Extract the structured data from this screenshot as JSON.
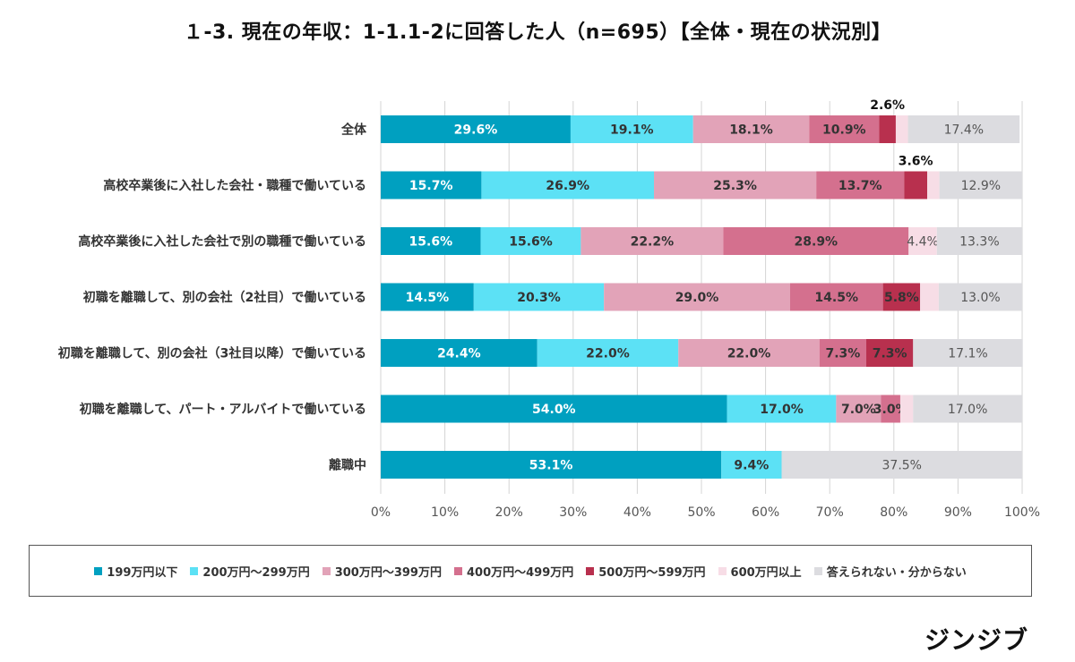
{
  "title": "１-3.  現在の年収：1-1.1-2に回答した人（n=695）【全体・現在の状況別】",
  "brand": "ジンジブ",
  "colors": {
    "s1": "#00a0c0",
    "s2": "#5ce1f5",
    "s3": "#e2a3b8",
    "s4": "#d4708e",
    "s5": "#b8304e",
    "s6": "#f7dde6",
    "s7": "#dcdce0",
    "grid": "#d4d4d4"
  },
  "chart_data": {
    "type": "bar",
    "orientation": "horizontal",
    "stacked": true,
    "categories": [
      "全体",
      "高校卒業後に入社した会社・職種で働いている",
      "高校卒業後に入社した会社で別の職種で働いている",
      "初職を離職して、別の会社（2社目）で働いている",
      "初職を離職して、別の会社（3社目以降）で働いている",
      "初職を離職して、パート・アルバイトで働いている",
      "離職中"
    ],
    "series": [
      {
        "name": "199万円以下",
        "color_key": "s1",
        "values": [
          29.6,
          15.7,
          15.6,
          14.5,
          24.4,
          54.0,
          53.1
        ]
      },
      {
        "name": "200万円～299万円",
        "color_key": "s2",
        "values": [
          19.1,
          26.9,
          15.6,
          20.3,
          22.0,
          17.0,
          9.4
        ]
      },
      {
        "name": "300万円～399万円",
        "color_key": "s3",
        "values": [
          18.1,
          25.3,
          22.2,
          29.0,
          22.0,
          7.0,
          0
        ]
      },
      {
        "name": "400万円～499万円",
        "color_key": "s4",
        "values": [
          10.9,
          13.7,
          28.9,
          14.5,
          7.3,
          3.0,
          0
        ]
      },
      {
        "name": "500万円～599万円",
        "color_key": "s5",
        "values": [
          2.6,
          3.6,
          0,
          5.8,
          7.3,
          0,
          0
        ]
      },
      {
        "name": "600万円以上",
        "color_key": "s6",
        "values": [
          1.9,
          1.9,
          4.4,
          2.9,
          0,
          2.0,
          0
        ]
      },
      {
        "name": "答えられない・分からない",
        "color_key": "s7",
        "values": [
          17.4,
          12.9,
          13.3,
          13.0,
          17.1,
          17.0,
          37.5
        ]
      }
    ],
    "data_labels": [
      [
        {
          "text": "29.6%",
          "style": "white"
        },
        {
          "text": "19.1%",
          "style": "dark"
        },
        {
          "text": "18.1%",
          "style": "dark"
        },
        {
          "text": "10.9%",
          "style": "dark"
        },
        {
          "text": "2.6%",
          "style": "above"
        },
        {
          "text": "",
          "style": "none"
        },
        {
          "text": "17.4%",
          "style": "plain"
        }
      ],
      [
        {
          "text": "15.7%",
          "style": "white"
        },
        {
          "text": "26.9%",
          "style": "dark"
        },
        {
          "text": "25.3%",
          "style": "dark"
        },
        {
          "text": "13.7%",
          "style": "dark"
        },
        {
          "text": "3.6%",
          "style": "above"
        },
        {
          "text": "",
          "style": "none"
        },
        {
          "text": "12.9%",
          "style": "plain"
        }
      ],
      [
        {
          "text": "15.6%",
          "style": "white"
        },
        {
          "text": "15.6%",
          "style": "dark"
        },
        {
          "text": "22.2%",
          "style": "dark"
        },
        {
          "text": "28.9%",
          "style": "dark"
        },
        {
          "text": "",
          "style": "none"
        },
        {
          "text": "4.4%",
          "style": "plain"
        },
        {
          "text": "13.3%",
          "style": "plain"
        }
      ],
      [
        {
          "text": "14.5%",
          "style": "white"
        },
        {
          "text": "20.3%",
          "style": "dark"
        },
        {
          "text": "29.0%",
          "style": "dark"
        },
        {
          "text": "14.5%",
          "style": "dark"
        },
        {
          "text": "5.8%",
          "style": "dark"
        },
        {
          "text": "",
          "style": "none"
        },
        {
          "text": "13.0%",
          "style": "plain"
        }
      ],
      [
        {
          "text": "24.4%",
          "style": "white"
        },
        {
          "text": "22.0%",
          "style": "dark"
        },
        {
          "text": "22.0%",
          "style": "dark"
        },
        {
          "text": "7.3%",
          "style": "dark"
        },
        {
          "text": "7.3%",
          "style": "dark"
        },
        {
          "text": "",
          "style": "none"
        },
        {
          "text": "17.1%",
          "style": "plain"
        }
      ],
      [
        {
          "text": "54.0%",
          "style": "white"
        },
        {
          "text": "17.0%",
          "style": "dark"
        },
        {
          "text": "7.0%",
          "style": "dark"
        },
        {
          "text": "3.0%",
          "style": "dark"
        },
        {
          "text": "",
          "style": "none"
        },
        {
          "text": "",
          "style": "none"
        },
        {
          "text": "17.0%",
          "style": "plain"
        }
      ],
      [
        {
          "text": "53.1%",
          "style": "white"
        },
        {
          "text": "9.4%",
          "style": "dark"
        },
        {
          "text": "",
          "style": "none"
        },
        {
          "text": "",
          "style": "none"
        },
        {
          "text": "",
          "style": "none"
        },
        {
          "text": "",
          "style": "none"
        },
        {
          "text": "37.5%",
          "style": "plain"
        }
      ]
    ],
    "xlim": [
      0,
      100
    ],
    "x_ticks": [
      "0%",
      "10%",
      "20%",
      "30%",
      "40%",
      "50%",
      "60%",
      "70%",
      "80%",
      "90%",
      "100%"
    ],
    "grid": true,
    "legend_position": "bottom"
  }
}
